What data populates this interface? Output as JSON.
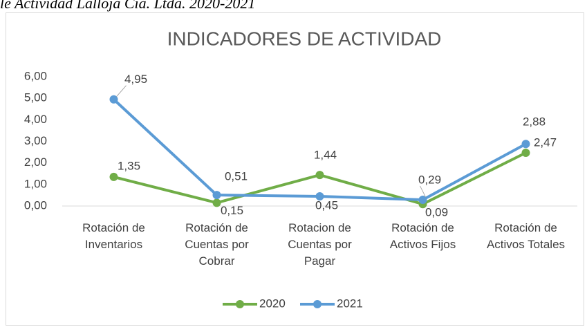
{
  "caption": "le Actividad Lalloja Cía. Ltda. 2020-2021",
  "chart_data": {
    "type": "line",
    "title": "INDICADORES DE ACTIVIDAD",
    "categories": [
      "Rotación de Inventarios",
      "Rotación de Cuentas por Cobrar",
      "Rotacion de Cuentas por Pagar",
      "Rotación de Activos Fijos",
      "Rotación de Activos Totales"
    ],
    "series": [
      {
        "name": "2020",
        "color": "#70ad47",
        "values": [
          1.35,
          0.15,
          1.44,
          0.09,
          2.47
        ],
        "value_labels": [
          "1,35",
          "0,15",
          "1,44",
          "0,09",
          "2,47"
        ]
      },
      {
        "name": "2021",
        "color": "#5b9bd5",
        "values": [
          4.95,
          0.51,
          0.45,
          0.29,
          2.88
        ],
        "value_labels": [
          "4,95",
          "0,51",
          "0,45",
          "0,29",
          "2,88"
        ]
      }
    ],
    "ylim": [
      0,
      6
    ],
    "yticks": [
      {
        "value": 0,
        "label": "0,00"
      },
      {
        "value": 1,
        "label": "1,00"
      },
      {
        "value": 2,
        "label": "2,00"
      },
      {
        "value": 3,
        "label": "3,00"
      },
      {
        "value": 4,
        "label": "4,00"
      },
      {
        "value": 5,
        "label": "5,00"
      },
      {
        "value": 6,
        "label": "6,00"
      }
    ],
    "legend": "bottom"
  }
}
